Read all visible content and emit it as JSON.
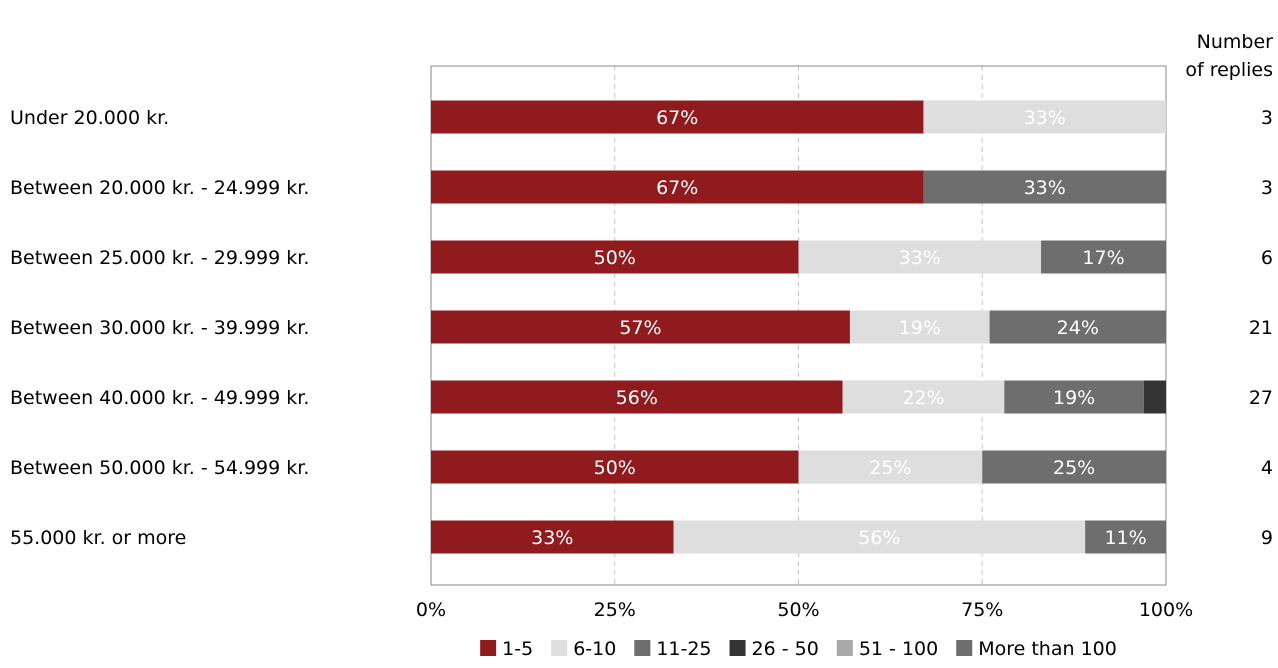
{
  "chart_data": {
    "type": "bar",
    "orientation": "horizontal",
    "stacked": true,
    "header_right": [
      "Number",
      "of replies"
    ],
    "categories": [
      "Under 20.000 kr.",
      "Between 20.000 kr. - 24.999 kr.",
      "Between 25.000 kr. - 29.999 kr.",
      "Between 30.000 kr. - 39.999 kr.",
      "Between 40.000 kr. - 49.999 kr.",
      "Between 50.000 kr. - 54.999 kr.",
      "55.000 kr. or more"
    ],
    "replies": [
      "3",
      "3",
      "6",
      "21",
      "27",
      "4",
      "9"
    ],
    "series": [
      {
        "name": "1-5",
        "color": "#8f1b1f",
        "label_color": "#ffffff",
        "values": [
          67,
          67,
          50,
          57,
          56,
          50,
          33
        ],
        "labels": [
          "67%",
          "67%",
          "50%",
          "57%",
          "56%",
          "50%",
          "33%"
        ]
      },
      {
        "name": "6-10",
        "color": "#dedede",
        "label_color": "#ffffff",
        "values": [
          33,
          0,
          33,
          19,
          22,
          25,
          56
        ],
        "labels": [
          "33%",
          "",
          "33%",
          "19%",
          "22%",
          "25%",
          "56%"
        ]
      },
      {
        "name": "11-25",
        "color": "#6e6e6e",
        "label_color": "#ffffff",
        "values": [
          0,
          33,
          17,
          24,
          19,
          25,
          11
        ],
        "labels": [
          "",
          "33%",
          "17%",
          "24%",
          "19%",
          "25%",
          "11%"
        ]
      },
      {
        "name": "26 - 50",
        "color": "#333333",
        "label_color": "#ffffff",
        "values": [
          0,
          0,
          0,
          0,
          3,
          0,
          0
        ],
        "labels": [
          "",
          "",
          "",
          "",
          "",
          "",
          ""
        ]
      },
      {
        "name": "51 - 100",
        "color": "#a9a9a9",
        "label_color": "#ffffff",
        "values": [
          0,
          0,
          0,
          0,
          0,
          0,
          0
        ],
        "labels": [
          "",
          "",
          "",
          "",
          "",
          "",
          ""
        ]
      },
      {
        "name": "More than 100",
        "color": "#6e6e6e",
        "label_color": "#ffffff",
        "values": [
          0,
          0,
          0,
          0,
          0,
          0,
          0
        ],
        "labels": [
          "",
          "",
          "",
          "",
          "",
          "",
          ""
        ]
      }
    ],
    "xlim": [
      0,
      100
    ],
    "xticks": [
      "0%",
      "25%",
      "50%",
      "75%",
      "100%"
    ],
    "grid": true,
    "legend_position": "bottom"
  }
}
